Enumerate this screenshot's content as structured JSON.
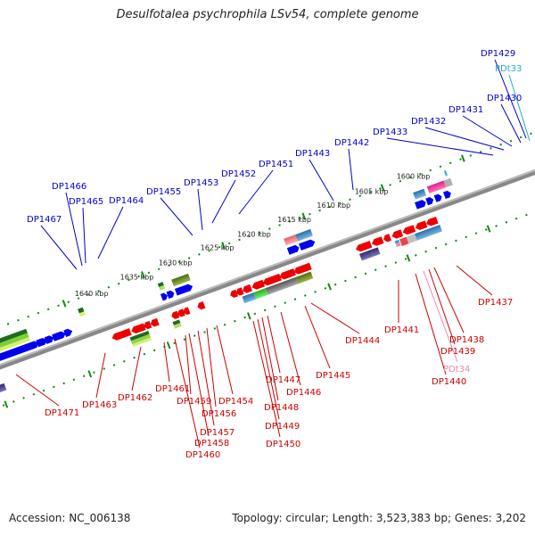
{
  "title": "Desulfotalea psychrophila LSv54, complete genome",
  "footer": {
    "accession": "Accession: NC_006138",
    "summary": "Topology: circular; Length: 3,523,383 bp; Genes: 3,202"
  },
  "colors": {
    "forward_label": "#0000cc",
    "reverse_label": "#cc0000",
    "trna_forward": "#22aadd",
    "trna_reverse": "#ee88aa",
    "axis": "#888888",
    "tick": "#118811"
  },
  "kbp_labels": [
    "1600 kbp",
    "1605 kbp",
    "1610 kbp",
    "1615 kbp",
    "1620 kbp",
    "1625 kbp",
    "1630 kbp",
    "1635 kbp",
    "1640 kbp"
  ],
  "forward_genes": [
    "DP1429",
    "PDt33",
    "DP1430",
    "DP1431",
    "DP1432",
    "DP1433",
    "DP1442",
    "DP1443",
    "DP1451",
    "DP1452",
    "DP1453",
    "DP1455",
    "DP1464",
    "DP1465",
    "DP1466",
    "DP1467"
  ],
  "reverse_genes": [
    "DP1437",
    "DP1438",
    "DP1439",
    "PDt34",
    "DP1440",
    "DP1441",
    "DP1444",
    "DP1445",
    "DP1446",
    "DP1447",
    "DP1448",
    "DP1449",
    "DP1450",
    "DP1454",
    "DP1456",
    "DP1457",
    "DP1458",
    "DP1459",
    "DP1460",
    "DP1461",
    "DP1462",
    "DP1463",
    "DP1471"
  ]
}
